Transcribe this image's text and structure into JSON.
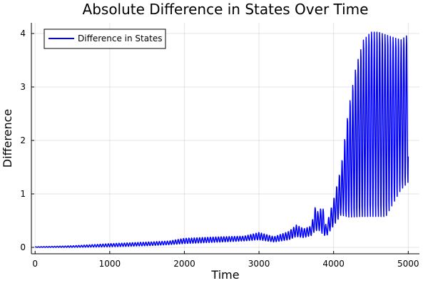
{
  "chart_data": {
    "type": "line",
    "title": "Absolute Difference in States Over Time",
    "xlabel": "Time",
    "ylabel": "Difference",
    "xlim": [
      -50,
      5150
    ],
    "ylim": [
      -0.12,
      4.2
    ],
    "xticks": [
      0,
      1000,
      2000,
      3000,
      4000,
      5000
    ],
    "yticks": [
      0,
      1,
      2,
      3,
      4
    ],
    "xtick_labels": [
      "0",
      "1000",
      "2000",
      "3000",
      "4000",
      "5000"
    ],
    "ytick_labels": [
      "0",
      "1",
      "2",
      "3",
      "4"
    ],
    "grid": true,
    "legend_position": "top-left",
    "series": [
      {
        "name": "Difference in States",
        "color": "#0000ff",
        "oscillation_period": 36,
        "x": [
          0,
          500,
          1000,
          1500,
          1800,
          2000,
          2500,
          2800,
          3000,
          3200,
          3400,
          3500,
          3600,
          3700,
          3750,
          3800,
          3850,
          3900,
          4000,
          4100,
          4200,
          4300,
          4400,
          4500,
          4600,
          4700,
          4800,
          4900,
          5000
        ],
        "upper": [
          0.01,
          0.03,
          0.07,
          0.1,
          0.12,
          0.17,
          0.2,
          0.21,
          0.28,
          0.2,
          0.3,
          0.42,
          0.35,
          0.4,
          0.75,
          0.65,
          0.8,
          0.4,
          0.9,
          1.5,
          2.6,
          3.4,
          3.9,
          4.05,
          4.05,
          4.0,
          3.95,
          3.9,
          4.0
        ],
        "lower": [
          0.0,
          0.0,
          0.01,
          0.03,
          0.05,
          0.07,
          0.1,
          0.12,
          0.14,
          0.1,
          0.14,
          0.2,
          0.18,
          0.22,
          0.3,
          0.32,
          0.25,
          0.2,
          0.4,
          0.6,
          0.55,
          0.55,
          0.55,
          0.55,
          0.55,
          0.55,
          0.8,
          1.05,
          1.2
        ],
        "center": [
          0.005,
          0.015,
          0.04,
          0.065,
          0.085,
          0.12,
          0.15,
          0.165,
          0.21,
          0.15,
          0.22,
          0.31,
          0.265,
          0.31,
          0.52,
          0.48,
          0.52,
          0.3,
          0.65,
          1.05,
          1.6,
          2.0,
          2.3,
          2.45,
          2.4,
          2.3,
          2.4,
          2.5,
          2.6
        ]
      }
    ]
  }
}
